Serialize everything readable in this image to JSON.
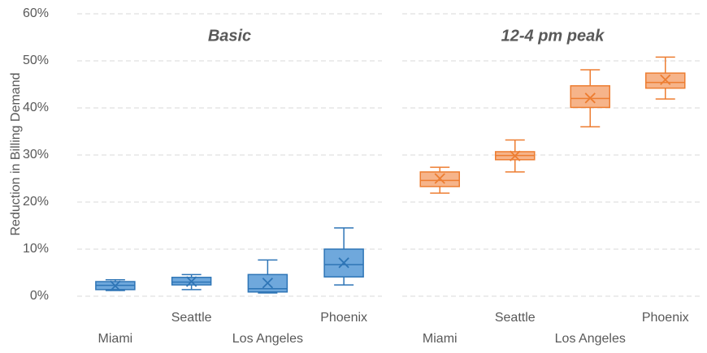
{
  "chart_data": {
    "type": "box",
    "ylabel": "Reduction in Billing Demand",
    "ylim": [
      0,
      60
    ],
    "yticks": [
      {
        "value": 0,
        "label": "0%"
      },
      {
        "value": 10,
        "label": "10%"
      },
      {
        "value": 20,
        "label": "20%"
      },
      {
        "value": 30,
        "label": "30%"
      },
      {
        "value": 40,
        "label": "40%"
      },
      {
        "value": 50,
        "label": "50%"
      },
      {
        "value": 60,
        "label": "60%"
      }
    ],
    "grid": true,
    "panels": [
      {
        "title": "Basic",
        "stroke": "#2e75b6",
        "fill": "#6fa8dc",
        "categories": [
          "Miami",
          "Seattle",
          "Los Angeles",
          "Phoenix"
        ],
        "boxes": [
          {
            "min": 1.2,
            "q1": 1.4,
            "median": 2.3,
            "q3": 3.1,
            "max": 3.5,
            "mean": 2.2
          },
          {
            "min": 1.4,
            "q1": 2.4,
            "median": 3.0,
            "q3": 4.0,
            "max": 4.6,
            "mean": 3.1
          },
          {
            "min": 0.7,
            "q1": 0.9,
            "median": 1.6,
            "q3": 4.6,
            "max": 7.7,
            "mean": 2.8
          },
          {
            "min": 2.4,
            "q1": 4.1,
            "median": 6.7,
            "q3": 10.0,
            "max": 14.5,
            "mean": 7.1
          }
        ]
      },
      {
        "title": "12-4 pm peak",
        "stroke": "#ed7d31",
        "fill": "#f6b48a",
        "categories": [
          "Miami",
          "Seattle",
          "Los Angeles",
          "Phoenix"
        ],
        "boxes": [
          {
            "min": 21.9,
            "q1": 23.3,
            "median": 24.6,
            "q3": 26.4,
            "max": 27.4,
            "mean": 25.0
          },
          {
            "min": 26.4,
            "q1": 29.0,
            "median": 29.9,
            "q3": 30.7,
            "max": 33.2,
            "mean": 29.8
          },
          {
            "min": 36.0,
            "q1": 40.1,
            "median": 42.0,
            "q3": 44.7,
            "max": 48.1,
            "mean": 42.1
          },
          {
            "min": 41.9,
            "q1": 44.2,
            "median": 45.4,
            "q3": 47.4,
            "max": 50.8,
            "mean": 46.0
          }
        ]
      }
    ]
  }
}
